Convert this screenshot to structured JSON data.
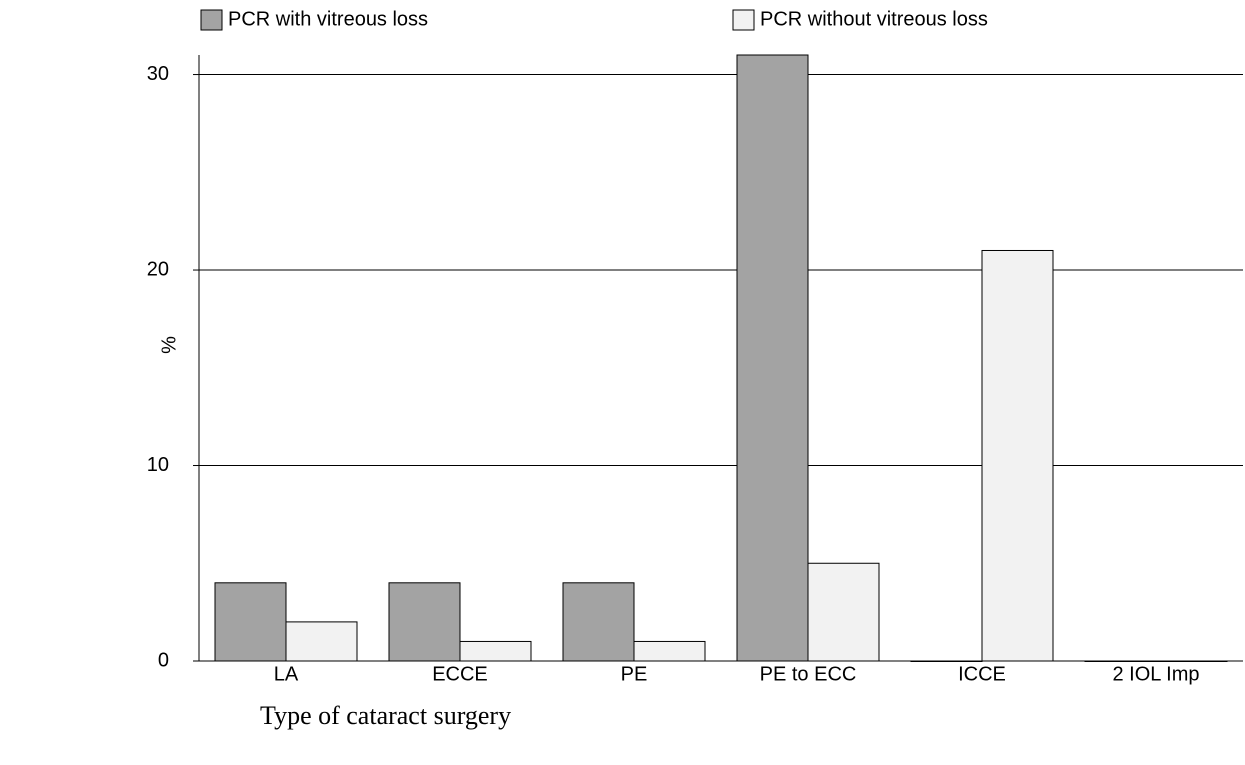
{
  "chart_data": {
    "type": "bar",
    "x_label": "Type of cataract surgery",
    "y_label": "%",
    "categories": [
      "LA",
      "ECCE",
      "PE",
      "PE to ECC",
      "ICCE",
      "2 IOL Imp"
    ],
    "series": [
      {
        "name": "PCR with vitreous loss",
        "color": "#a3a3a3",
        "values": [
          4,
          4,
          4,
          31,
          0,
          0
        ]
      },
      {
        "name": "PCR without vitreous loss",
        "color": "#f2f2f2",
        "values": [
          2,
          1,
          1,
          5,
          21,
          0
        ]
      }
    ],
    "ylim": [
      0,
      31
    ],
    "yticks": [
      0,
      10,
      20,
      30
    ],
    "grid": true,
    "legend": "top"
  }
}
